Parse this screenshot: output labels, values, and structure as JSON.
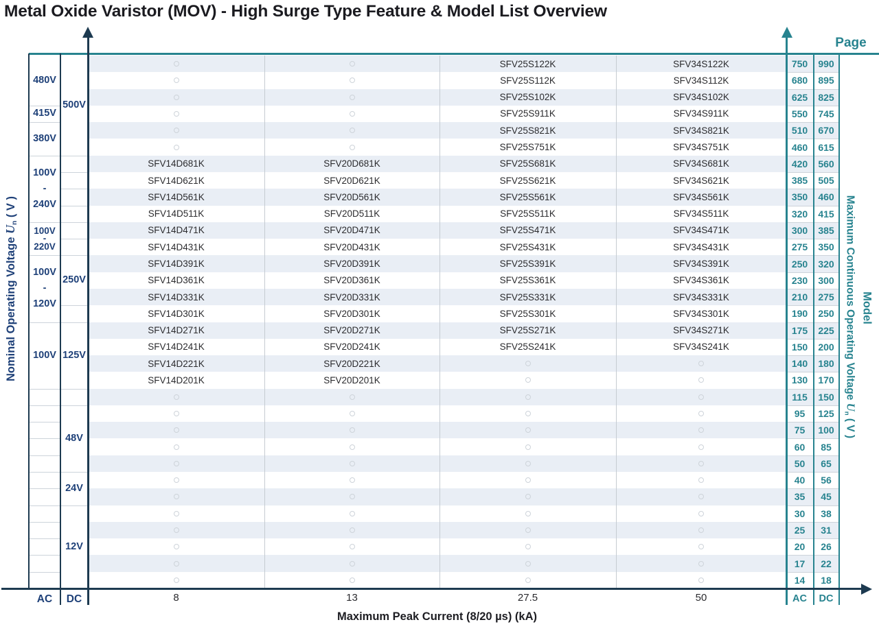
{
  "chart_data": {
    "type": "table",
    "title": "Metal Oxide Varistor (MOV) - High Surge Type Feature & Model List Overview",
    "x_axis": {
      "title": "Maximum Peak Current (8/20 µs) (kA)",
      "categories": [
        "8",
        "13",
        "27.5",
        "50"
      ],
      "left_units": [
        "AC",
        "DC"
      ],
      "right_units": [
        "AC",
        "DC"
      ]
    },
    "left_axis": {
      "title_pre": "Nominal Operating Voltage ",
      "title_symbol": "U",
      "title_sub": "n",
      "title_post": " ( V )",
      "ac_blocks": [
        {
          "label": "480V",
          "rows": [
            1,
            3
          ]
        },
        {
          "label": "415V",
          "rows": [
            4,
            4
          ]
        },
        {
          "label": "380V",
          "rows": [
            5,
            6
          ]
        },
        {
          "label": "100V\n-\n240V",
          "rows": [
            7,
            10
          ]
        },
        {
          "label": "100V\n-\n220V",
          "rows": [
            11,
            12
          ]
        },
        {
          "label": "100V\n-\n120V",
          "rows": [
            13,
            16
          ]
        },
        {
          "label": "100V",
          "rows": [
            17,
            20
          ]
        }
      ],
      "dc_blocks": [
        {
          "label": "500V",
          "rows": [
            1,
            6
          ]
        },
        {
          "label": "250V",
          "rows": [
            13,
            15
          ]
        },
        {
          "label": "125V",
          "rows": [
            17,
            20
          ]
        },
        {
          "label": "48V",
          "rows": [
            22,
            25
          ]
        },
        {
          "label": "24V",
          "rows": [
            26,
            27
          ]
        },
        {
          "label": "12V",
          "rows": [
            28,
            32
          ]
        }
      ]
    },
    "right_axis": {
      "title_pre": "Maximum Continuous Operating Voltage ",
      "title_symbol": "U",
      "title_sub": "n",
      "title_post": " ( V )",
      "model_label": "Model",
      "page_label": "Page"
    },
    "rows": [
      {
        "models": [
          "",
          "",
          "SFV25S122K",
          "SFV34S122K"
        ],
        "ac": "750",
        "dc": "990"
      },
      {
        "models": [
          "",
          "",
          "SFV25S112K",
          "SFV34S112K"
        ],
        "ac": "680",
        "dc": "895"
      },
      {
        "models": [
          "",
          "",
          "SFV25S102K",
          "SFV34S102K"
        ],
        "ac": "625",
        "dc": "825"
      },
      {
        "models": [
          "",
          "",
          "SFV25S911K",
          "SFV34S911K"
        ],
        "ac": "550",
        "dc": "745"
      },
      {
        "models": [
          "",
          "",
          "SFV25S821K",
          "SFV34S821K"
        ],
        "ac": "510",
        "dc": "670"
      },
      {
        "models": [
          "",
          "",
          "SFV25S751K",
          "SFV34S751K"
        ],
        "ac": "460",
        "dc": "615"
      },
      {
        "models": [
          "SFV14D681K",
          "SFV20D681K",
          "SFV25S681K",
          "SFV34S681K"
        ],
        "ac": "420",
        "dc": "560"
      },
      {
        "models": [
          "SFV14D621K",
          "SFV20D621K",
          "SFV25S621K",
          "SFV34S621K"
        ],
        "ac": "385",
        "dc": "505"
      },
      {
        "models": [
          "SFV14D561K",
          "SFV20D561K",
          "SFV25S561K",
          "SFV34S561K"
        ],
        "ac": "350",
        "dc": "460"
      },
      {
        "models": [
          "SFV14D511K",
          "SFV20D511K",
          "SFV25S511K",
          "SFV34S511K"
        ],
        "ac": "320",
        "dc": "415"
      },
      {
        "models": [
          "SFV14D471K",
          "SFV20D471K",
          "SFV25S471K",
          "SFV34S471K"
        ],
        "ac": "300",
        "dc": "385"
      },
      {
        "models": [
          "SFV14D431K",
          "SFV20D431K",
          "SFV25S431K",
          "SFV34S431K"
        ],
        "ac": "275",
        "dc": "350"
      },
      {
        "models": [
          "SFV14D391K",
          "SFV20D391K",
          "SFV25S391K",
          "SFV34S391K"
        ],
        "ac": "250",
        "dc": "320"
      },
      {
        "models": [
          "SFV14D361K",
          "SFV20D361K",
          "SFV25S361K",
          "SFV34S361K"
        ],
        "ac": "230",
        "dc": "300"
      },
      {
        "models": [
          "SFV14D331K",
          "SFV20D331K",
          "SFV25S331K",
          "SFV34S331K"
        ],
        "ac": "210",
        "dc": "275"
      },
      {
        "models": [
          "SFV14D301K",
          "SFV20D301K",
          "SFV25S301K",
          "SFV34S301K"
        ],
        "ac": "190",
        "dc": "250"
      },
      {
        "models": [
          "SFV14D271K",
          "SFV20D271K",
          "SFV25S271K",
          "SFV34S271K"
        ],
        "ac": "175",
        "dc": "225"
      },
      {
        "models": [
          "SFV14D241K",
          "SFV20D241K",
          "SFV25S241K",
          "SFV34S241K"
        ],
        "ac": "150",
        "dc": "200"
      },
      {
        "models": [
          "SFV14D221K",
          "SFV20D221K",
          "",
          ""
        ],
        "ac": "140",
        "dc": "180"
      },
      {
        "models": [
          "SFV14D201K",
          "SFV20D201K",
          "",
          ""
        ],
        "ac": "130",
        "dc": "170"
      },
      {
        "models": [
          "",
          "",
          "",
          ""
        ],
        "ac": "115",
        "dc": "150"
      },
      {
        "models": [
          "",
          "",
          "",
          ""
        ],
        "ac": "95",
        "dc": "125"
      },
      {
        "models": [
          "",
          "",
          "",
          ""
        ],
        "ac": "75",
        "dc": "100"
      },
      {
        "models": [
          "",
          "",
          "",
          ""
        ],
        "ac": "60",
        "dc": "85"
      },
      {
        "models": [
          "",
          "",
          "",
          ""
        ],
        "ac": "50",
        "dc": "65"
      },
      {
        "models": [
          "",
          "",
          "",
          ""
        ],
        "ac": "40",
        "dc": "56"
      },
      {
        "models": [
          "",
          "",
          "",
          ""
        ],
        "ac": "35",
        "dc": "45"
      },
      {
        "models": [
          "",
          "",
          "",
          ""
        ],
        "ac": "30",
        "dc": "38"
      },
      {
        "models": [
          "",
          "",
          "",
          ""
        ],
        "ac": "25",
        "dc": "31"
      },
      {
        "models": [
          "",
          "",
          "",
          ""
        ],
        "ac": "20",
        "dc": "26"
      },
      {
        "models": [
          "",
          "",
          "",
          ""
        ],
        "ac": "17",
        "dc": "22"
      },
      {
        "models": [
          "",
          "",
          "",
          ""
        ],
        "ac": "14",
        "dc": "18"
      }
    ]
  },
  "colors": {
    "navy": "#1e4078",
    "teal": "#27838f",
    "axis": "#1d3a50",
    "stripe": "#e9eef5",
    "grid": "#c5cbd1",
    "divider": "#ccd3da",
    "model_text": "#2b2b2e"
  }
}
